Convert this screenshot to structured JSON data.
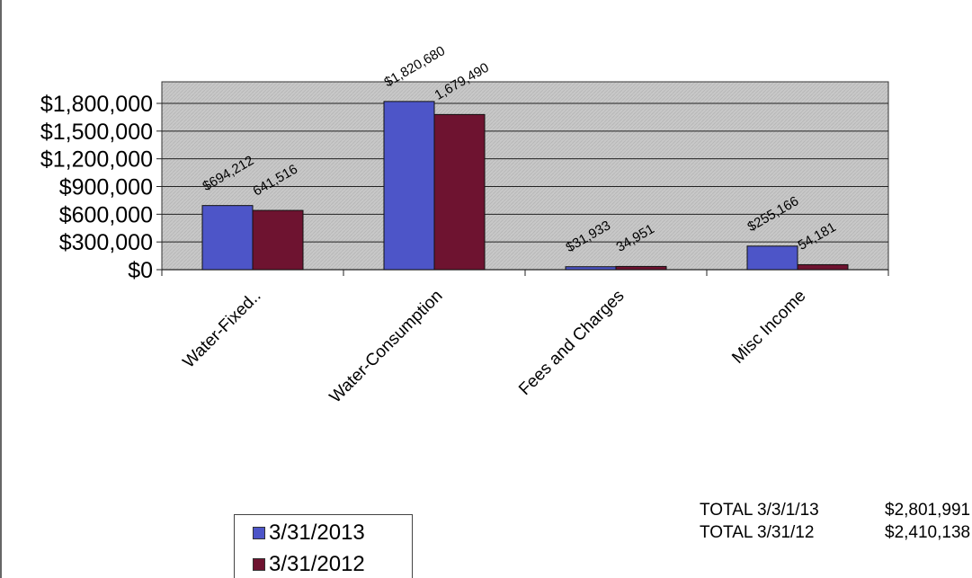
{
  "chart_data": {
    "type": "bar",
    "categories": [
      "Water-Fixed..",
      "Water-Consumption",
      "Fees and Charges",
      "Misc Income"
    ],
    "series": [
      {
        "name": "3/31/2013",
        "values": [
          694212,
          1820680,
          31933,
          255166
        ],
        "labels": [
          "$694,212",
          "$1,820,680",
          "$31,933",
          "$255,166"
        ],
        "color": "#4d55c8"
      },
      {
        "name": "3/31/2012",
        "values": [
          641516,
          1679490,
          34951,
          54181
        ],
        "labels": [
          "641,516",
          "1,679,490",
          "34,951",
          "54,181"
        ],
        "color": "#6e1330"
      }
    ],
    "y_ticks": [
      0,
      300000,
      600000,
      900000,
      1200000,
      1500000,
      1800000
    ],
    "y_tick_labels": [
      "$0",
      "$300,000",
      "$600,000",
      "$900,000",
      "$1,200,000",
      "$1,500,000",
      "$1,800,000"
    ],
    "ylim": [
      0,
      1800000
    ],
    "grid": true,
    "plot_background": "#c8c8c8",
    "legend_position": "bottom-left",
    "title": "",
    "xlabel": "",
    "ylabel": ""
  },
  "legend": [
    {
      "label": "3/31/2013",
      "color": "#4d55c8"
    },
    {
      "label": "3/31/2012",
      "color": "#6e1330"
    }
  ],
  "totals": [
    {
      "label": "TOTAL 3/3/1/13",
      "value": "$2,801,991"
    },
    {
      "label": "TOTAL 3/31/12",
      "value": "$2,410,138"
    }
  ]
}
